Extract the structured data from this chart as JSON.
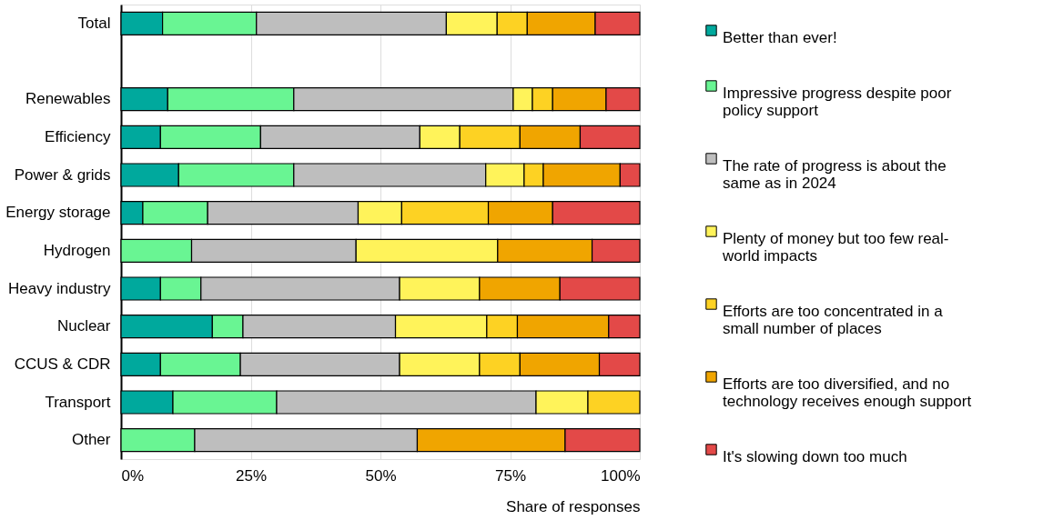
{
  "chart_data": {
    "type": "bar",
    "orientation": "horizontal",
    "stacked": true,
    "xlabel": "Share of responses",
    "categories": [
      "Total",
      null,
      "Renewables",
      "Efficiency",
      "Power & grids",
      "Energy storage",
      "Hydrogen",
      "Heavy industry",
      "Nuclear",
      "CCUS & CDR",
      "Transport",
      "Other"
    ],
    "series": [
      {
        "name": "Better than ever!",
        "color": "#00a99d",
        "values": [
          8.0,
          null,
          9.0,
          7.6,
          11.1,
          4.2,
          0,
          7.6,
          17.6,
          7.6,
          10.0,
          0
        ]
      },
      {
        "name": "Impressive progress despite poor policy support",
        "color": "#69f593",
        "values": [
          18.1,
          null,
          24.3,
          19.3,
          22.2,
          12.5,
          13.6,
          7.8,
          5.9,
          15.4,
          20.0,
          14.2
        ]
      },
      {
        "name": "The rate of progress is about the same as in 2024",
        "color": "#bebebe",
        "values": [
          36.6,
          null,
          42.3,
          30.7,
          37.0,
          29.0,
          31.7,
          38.3,
          29.4,
          30.7,
          50.0,
          42.9
        ]
      },
      {
        "name": "Plenty of money but too few real-world impacts",
        "color": "#fff35a",
        "values": [
          9.8,
          null,
          3.7,
          7.7,
          7.4,
          8.4,
          27.3,
          15.4,
          17.6,
          15.4,
          10.0,
          0
        ]
      },
      {
        "name": "Efforts are too concentrated in a small number of places",
        "color": "#fdd223",
        "values": [
          5.8,
          null,
          3.9,
          11.6,
          3.7,
          16.7,
          0,
          0,
          5.9,
          7.8,
          10.0,
          0
        ]
      },
      {
        "name": "Efforts are too diversified, and no technology receives enough support",
        "color": "#f0a500",
        "values": [
          13.1,
          null,
          10.3,
          11.6,
          14.8,
          12.4,
          18.2,
          15.5,
          17.6,
          15.3,
          0,
          28.5
        ]
      },
      {
        "name": "It's slowing down too much",
        "color": "#e34948",
        "values": [
          8.6,
          null,
          6.5,
          11.5,
          3.8,
          16.8,
          9.2,
          15.4,
          6.0,
          7.8,
          0,
          14.4
        ]
      }
    ],
    "xlim": [
      0,
      100
    ],
    "xticks": [
      {
        "value": 0,
        "label": "0%"
      },
      {
        "value": 25,
        "label": "25%"
      },
      {
        "value": 50,
        "label": "50%"
      },
      {
        "value": 75,
        "label": "75%"
      },
      {
        "value": 100,
        "label": "100%"
      }
    ],
    "grid": "x",
    "legend": "right"
  }
}
